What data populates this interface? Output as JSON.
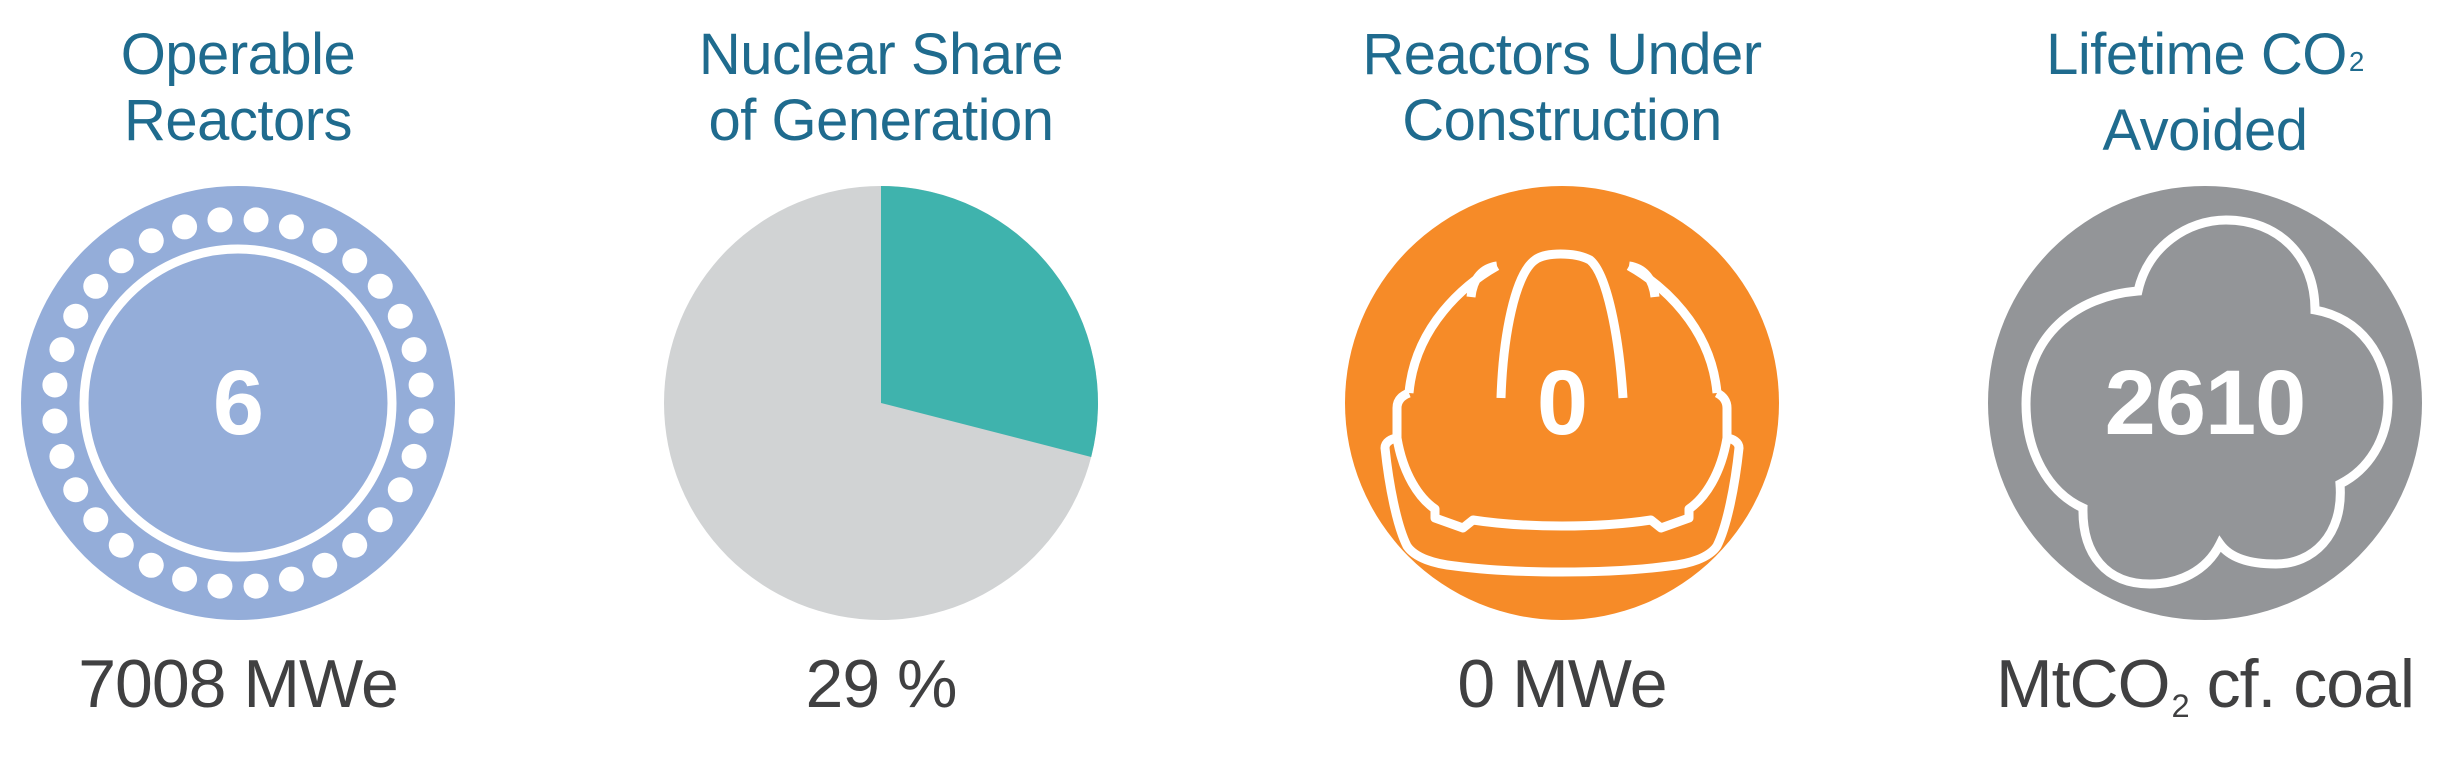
{
  "colors": {
    "title": "#1f6b8e",
    "value_text": "#404041",
    "reactors_badge": "#94add9",
    "pie_nuclear": "#3fb3ad",
    "pie_other": "#d1d3d4",
    "construction_badge": "#f68b28",
    "co2_badge": "#939598",
    "icon_stroke": "#ffffff"
  },
  "stats": [
    {
      "id": "operable-reactors",
      "title_line1": "Operable",
      "title_line2": "Reactors",
      "badge_value": "6",
      "badge_icon": "reactor-ring-icon",
      "value": "7008 MWe"
    },
    {
      "id": "nuclear-share",
      "title_line1": "Nuclear Share",
      "title_line2": "of Generation",
      "badge_value": "",
      "badge_icon": "pie-chart-icon",
      "value": "29 %"
    },
    {
      "id": "under-construction",
      "title_line1": "Reactors Under",
      "title_line2": "Construction",
      "badge_value": "0",
      "badge_icon": "hard-hat-icon",
      "value": "0 MWe"
    },
    {
      "id": "co2-avoided",
      "title_line1": "Lifetime CO",
      "title_line1_sub": "2",
      "title_line2": "Avoided",
      "badge_value": "2610",
      "badge_icon": "cloud-icon",
      "value_prefix": "MtCO",
      "value_sub": "2",
      "value_suffix": " cf. coal"
    }
  ],
  "chart_data": {
    "type": "pie",
    "title": "Nuclear Share of Generation",
    "categories": [
      "Nuclear",
      "Other"
    ],
    "values": [
      29,
      71
    ],
    "colors": [
      "#3fb3ad",
      "#d1d3d4"
    ],
    "start_angle": "12 o'clock, clockwise",
    "label": "29 %"
  }
}
